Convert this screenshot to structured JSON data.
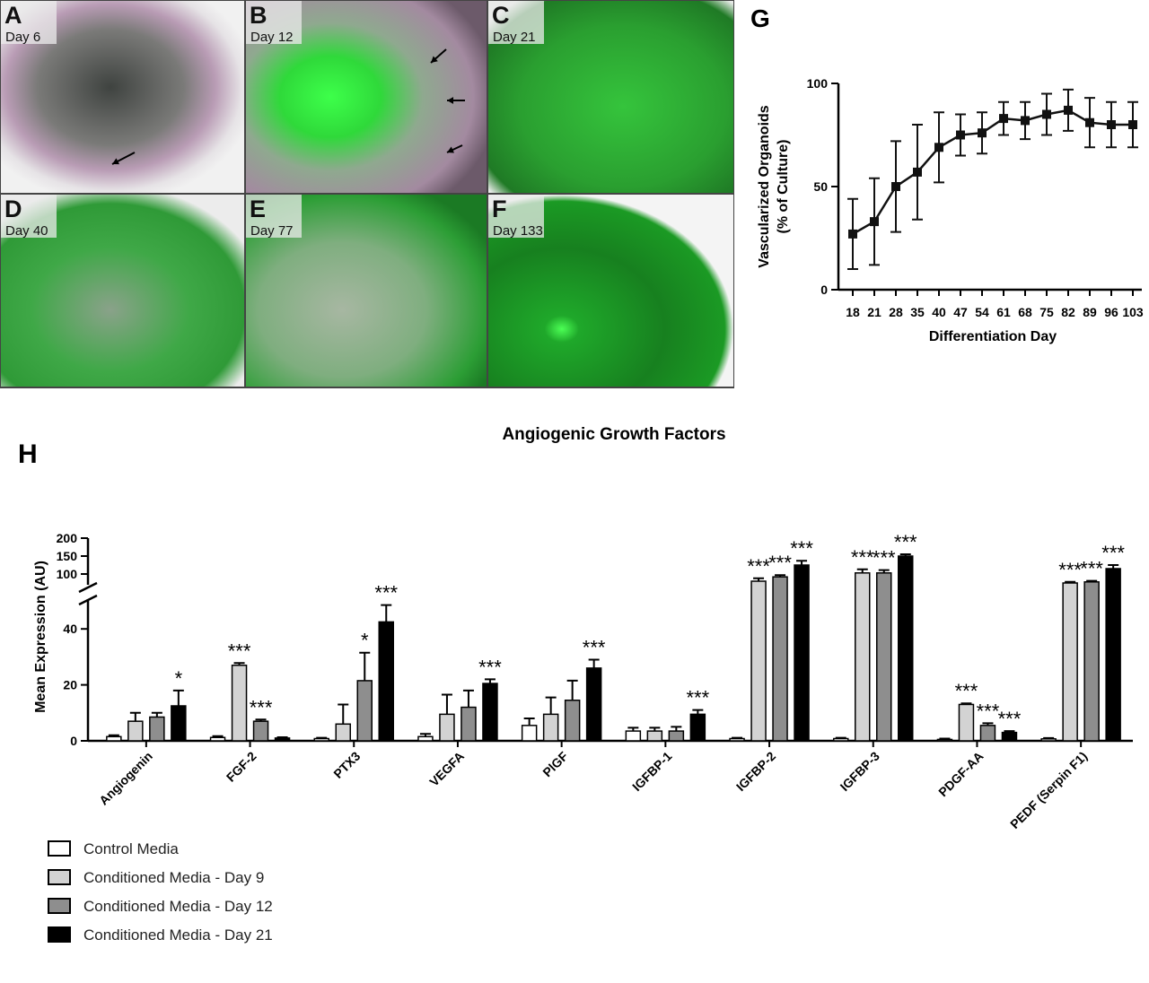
{
  "panels": [
    {
      "label": "A",
      "caption": "Day 6"
    },
    {
      "label": "B",
      "caption": "Day 12"
    },
    {
      "label": "C",
      "caption": "Day 21"
    },
    {
      "label": "D",
      "caption": "Day 40"
    },
    {
      "label": "E",
      "caption": "Day 77"
    },
    {
      "label": "F",
      "caption": "Day 133"
    }
  ],
  "chart_data": [
    {
      "type": "line",
      "panel_label": "G",
      "ylabel": [
        "Vascularized Organoids",
        "(% of Culture)"
      ],
      "xlabel": "Differentiation Day",
      "categories": [
        "18",
        "21",
        "28",
        "35",
        "40",
        "47",
        "54",
        "61",
        "68",
        "75",
        "82",
        "89",
        "96",
        "103"
      ],
      "values": [
        27,
        33,
        50,
        57,
        69,
        75,
        76,
        83,
        82,
        85,
        87,
        81,
        80,
        80
      ],
      "errors": [
        17,
        21,
        22,
        23,
        17,
        10,
        10,
        8,
        9,
        10,
        10,
        12,
        11,
        11
      ],
      "color": "#111111",
      "ylim": [
        0,
        100
      ],
      "yticks": [
        0,
        50,
        100
      ]
    },
    {
      "type": "grouped_bar",
      "panel_label": "H",
      "title": "Angiogenic Growth Factors",
      "ylabel": "Mean Expression (AU)",
      "categories": [
        "Angiogenin",
        "FGF-2",
        "PTX3",
        "VEGFA",
        "PlGF",
        "IGFBP-1",
        "IGFBP-2",
        "IGFBP-3",
        "PDGF-AA",
        "PEDF (Serpin F1)"
      ],
      "series": [
        {
          "name": "Control Media",
          "color": "#ffffff",
          "values": [
            1.5,
            1.2,
            0.8,
            1.5,
            5.5,
            3.5,
            0.8,
            0.8,
            0.5,
            0.7
          ],
          "errors": [
            0.5,
            0.5,
            0.3,
            1,
            2.5,
            1.2,
            0.3,
            0.3,
            0.3,
            0.3
          ],
          "annotations": [
            null,
            null,
            null,
            null,
            null,
            null,
            null,
            null,
            null,
            null
          ]
        },
        {
          "name": "Conditioned Media - Day 9",
          "color": "#d3d3d3",
          "values": [
            7,
            27,
            6,
            9.5,
            9.5,
            3.5,
            80,
            103,
            13,
            75
          ],
          "errors": [
            3,
            0.8,
            7,
            7,
            6,
            1.2,
            8,
            10,
            0.4,
            3
          ],
          "annotations": [
            null,
            "***",
            null,
            null,
            null,
            null,
            "***",
            "***",
            "***",
            "***"
          ]
        },
        {
          "name": "Conditioned Media - Day 12",
          "color": "#8e8e8e",
          "values": [
            8.5,
            7,
            21.5,
            12,
            14.5,
            3.5,
            92,
            103,
            5.5,
            78
          ],
          "errors": [
            1.5,
            0.6,
            10,
            6,
            7,
            1.5,
            5,
            8,
            0.8,
            3
          ],
          "annotations": [
            null,
            "***",
            "*",
            null,
            null,
            null,
            "***",
            "***",
            "***",
            "***"
          ]
        },
        {
          "name": "Conditioned Media - Day 21",
          "color": "#000000",
          "values": [
            12.5,
            1,
            42.5,
            20.5,
            26,
            9.5,
            125,
            150,
            3,
            115
          ],
          "errors": [
            5.5,
            0.3,
            6,
            1.5,
            3,
            1.5,
            12,
            5,
            0.5,
            10
          ],
          "annotations": [
            "*",
            null,
            "***",
            "***",
            "***",
            "***",
            "***",
            "***",
            "***",
            "***"
          ]
        }
      ],
      "ylim": [
        0,
        200
      ],
      "axis_break": [
        50,
        70
      ],
      "yticks": [
        0,
        20,
        40,
        100,
        150,
        200
      ]
    }
  ]
}
